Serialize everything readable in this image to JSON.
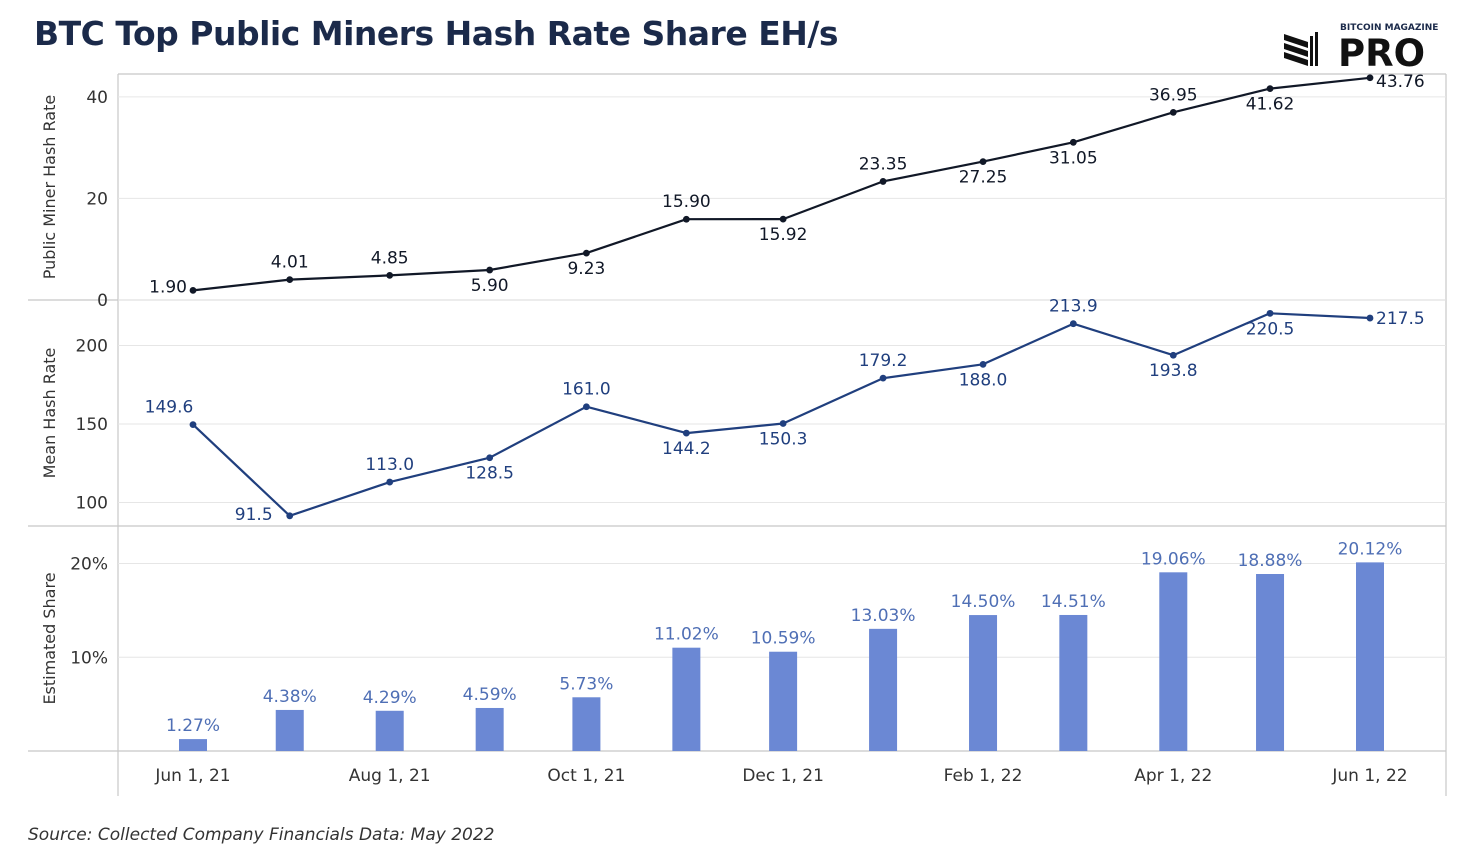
{
  "header": {
    "title": "BTC Top Public Miners Hash Rate Share EH/s"
  },
  "logo": {
    "top_text": "BITCOIN MAGAZINE",
    "main_text": "PRO"
  },
  "footer": {
    "source": "Source: Collected  Company Financials Data: May 2022"
  },
  "colors": {
    "line_dark": "#111827",
    "line_blue": "#203f7e",
    "bar": "#6b88d4",
    "bar_label": "#4f6fb5",
    "grid": "#e6e6e6",
    "border": "#c8c8c8"
  },
  "chart_data": [
    {
      "type": "line",
      "ylabel": "Public Miner Hash Rate",
      "ylim": [
        0,
        44.5
      ],
      "yticks": [
        0,
        20,
        40
      ],
      "x": [
        "2021-06-01",
        "2021-07-01",
        "2021-08-01",
        "2021-09-01",
        "2021-10-01",
        "2021-11-01",
        "2021-12-01",
        "2022-01-01",
        "2022-02-01",
        "2022-03-01",
        "2022-04-01",
        "2022-05-01",
        "2022-06-01"
      ],
      "values": [
        1.9,
        4.01,
        4.85,
        5.9,
        9.23,
        15.9,
        15.92,
        23.35,
        27.25,
        31.05,
        36.95,
        41.62,
        43.76
      ],
      "labels": [
        "1.90",
        "4.01",
        "4.85",
        "5.90",
        "9.23",
        "15.90",
        "15.92",
        "23.35",
        "27.25",
        "31.05",
        "36.95",
        "41.62",
        "43.76"
      ]
    },
    {
      "type": "line",
      "ylabel": "Mean Hash Rate",
      "ylim": [
        85,
        229
      ],
      "yticks": [
        100,
        150,
        200
      ],
      "x": [
        "2021-06-01",
        "2021-07-01",
        "2021-08-01",
        "2021-09-01",
        "2021-10-01",
        "2021-11-01",
        "2021-12-01",
        "2022-01-01",
        "2022-02-01",
        "2022-03-01",
        "2022-04-01",
        "2022-05-01",
        "2022-06-01"
      ],
      "values": [
        149.6,
        91.5,
        113.0,
        128.5,
        161.0,
        144.2,
        150.3,
        179.2,
        188.0,
        213.9,
        193.8,
        220.5,
        217.5
      ],
      "labels": [
        "149.6",
        "91.5",
        "113.0",
        "128.5",
        "161.0",
        "144.2",
        "150.3",
        "179.2",
        "188.0",
        "213.9",
        "193.8",
        "220.5",
        "217.5"
      ]
    },
    {
      "type": "bar",
      "ylabel": "Estimated Share",
      "ylim": [
        0,
        24
      ],
      "yticks": [
        10,
        20
      ],
      "ytick_labels": [
        "10%",
        "20%"
      ],
      "x": [
        "2021-06-01",
        "2021-07-01",
        "2021-08-01",
        "2021-09-01",
        "2021-10-01",
        "2021-11-01",
        "2021-12-01",
        "2022-01-01",
        "2022-02-01",
        "2022-03-01",
        "2022-04-01",
        "2022-05-01",
        "2022-06-01"
      ],
      "values": [
        1.27,
        4.38,
        4.29,
        4.59,
        5.73,
        11.02,
        10.59,
        13.03,
        14.5,
        14.51,
        19.06,
        18.88,
        20.12
      ],
      "labels": [
        "1.27%",
        "4.38%",
        "4.29%",
        "4.59%",
        "5.73%",
        "11.02%",
        "10.59%",
        "13.03%",
        "14.50%",
        "14.51%",
        "19.06%",
        "18.88%",
        "20.12%"
      ]
    }
  ],
  "x_axis": {
    "ticks": [
      "2021-06-01",
      "2021-08-01",
      "2021-10-01",
      "2021-12-01",
      "2022-02-01",
      "2022-04-01",
      "2022-06-01"
    ],
    "tick_labels": [
      "Jun 1, 21",
      "Aug 1, 21",
      "Oct 1, 21",
      "Dec 1, 21",
      "Feb 1, 22",
      "Apr 1, 22",
      "Jun 1, 22"
    ]
  }
}
